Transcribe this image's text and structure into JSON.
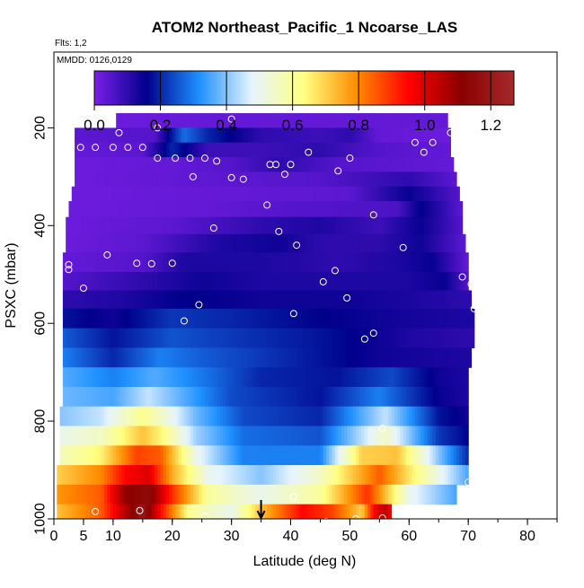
{
  "chart_data": {
    "type": "heatmap",
    "title": "ATOM2 Northeast_Pacific_1 Ncoarse_LAS",
    "annotations": [
      "Flts: 1,2",
      "MMDD: 0126,0129"
    ],
    "xlabel": "Latitude (deg N)",
    "ylabel": "PSXC (mbar)",
    "xlim": [
      0,
      85
    ],
    "ylim": [
      1000,
      45
    ],
    "x_ticks": [
      0,
      5,
      10,
      20,
      30,
      40,
      50,
      60,
      70,
      80
    ],
    "y_ticks": [
      200,
      400,
      600,
      800,
      1000
    ],
    "colorbar": {
      "ticks": [
        0.0,
        0.2,
        0.4,
        0.6,
        0.8,
        1.0,
        1.2
      ],
      "tick_labels": [
        "0.0",
        "0.2",
        "0.4",
        "0.6",
        "0.8",
        "1.0",
        "1.2"
      ],
      "range": [
        0,
        1.27
      ],
      "colors": [
        "#7b1fe8",
        "#00008b",
        "#1e90ff",
        "#e6f4ff",
        "#ffff80",
        "#ff8c00",
        "#ff0000",
        "#8b0000",
        "#a52a2a"
      ]
    },
    "rows": [
      {
        "p": 185,
        "lat_range": [
          10.5,
          66.5
        ],
        "knots": [
          [
            10.5,
            0.02
          ],
          [
            30,
            0.03
          ],
          [
            50,
            0.03
          ],
          [
            66.5,
            0.03
          ]
        ]
      },
      {
        "p": 215,
        "lat_range": [
          3.5,
          67
        ],
        "knots": [
          [
            3.5,
            0.04
          ],
          [
            17,
            0.05
          ],
          [
            22,
            0.28
          ],
          [
            26,
            0.2
          ],
          [
            35,
            0.1
          ],
          [
            45,
            0.08
          ],
          [
            50,
            0.1
          ],
          [
            55,
            0.03
          ],
          [
            67,
            0.02
          ]
        ]
      },
      {
        "p": 245,
        "lat_range": [
          3.5,
          67
        ],
        "knots": [
          [
            3.5,
            0.03
          ],
          [
            15,
            0.04
          ],
          [
            20,
            0.2
          ],
          [
            26,
            0.08
          ],
          [
            35,
            0.08
          ],
          [
            45,
            0.1
          ],
          [
            55,
            0.05
          ],
          [
            67,
            0.03
          ]
        ]
      },
      {
        "p": 275,
        "lat_range": [
          3.5,
          67.5
        ],
        "knots": [
          [
            3.5,
            0.02
          ],
          [
            20,
            0.03
          ],
          [
            30,
            0.05
          ],
          [
            38,
            0.1
          ],
          [
            48,
            0.05
          ],
          [
            67.5,
            0.03
          ]
        ]
      },
      {
        "p": 305,
        "lat_range": [
          3.5,
          68
        ],
        "knots": [
          [
            3.5,
            0.02
          ],
          [
            30,
            0.04
          ],
          [
            45,
            0.05
          ],
          [
            60,
            0.1
          ],
          [
            68,
            0.04
          ]
        ]
      },
      {
        "p": 335,
        "lat_range": [
          3,
          68.5
        ],
        "knots": [
          [
            3,
            0.02
          ],
          [
            30,
            0.03
          ],
          [
            50,
            0.04
          ],
          [
            60,
            0.15
          ],
          [
            68.5,
            0.05
          ]
        ]
      },
      {
        "p": 365,
        "lat_range": [
          2.5,
          69
        ],
        "knots": [
          [
            2.5,
            0.02
          ],
          [
            25,
            0.03
          ],
          [
            40,
            0.05
          ],
          [
            58,
            0.06
          ],
          [
            62,
            0.16
          ],
          [
            69,
            0.04
          ]
        ]
      },
      {
        "p": 400,
        "lat_range": [
          2,
          69
        ],
        "knots": [
          [
            2,
            0.02
          ],
          [
            20,
            0.04
          ],
          [
            35,
            0.1
          ],
          [
            45,
            0.12
          ],
          [
            55,
            0.08
          ],
          [
            62,
            0.15
          ],
          [
            69,
            0.05
          ]
        ]
      },
      {
        "p": 435,
        "lat_range": [
          2,
          69.5
        ],
        "knots": [
          [
            2,
            0.02
          ],
          [
            15,
            0.04
          ],
          [
            28,
            0.12
          ],
          [
            38,
            0.14
          ],
          [
            45,
            0.1
          ],
          [
            55,
            0.1
          ],
          [
            62,
            0.14
          ],
          [
            69.5,
            0.04
          ]
        ]
      },
      {
        "p": 475,
        "lat_range": [
          1.5,
          70
        ],
        "knots": [
          [
            1.5,
            0.03
          ],
          [
            15,
            0.05
          ],
          [
            22,
            0.12
          ],
          [
            35,
            0.12
          ],
          [
            48,
            0.1
          ],
          [
            58,
            0.12
          ],
          [
            64,
            0.15
          ],
          [
            70,
            0.03
          ]
        ]
      },
      {
        "p": 515,
        "lat_range": [
          1.5,
          70
        ],
        "knots": [
          [
            1.5,
            0.05
          ],
          [
            15,
            0.1
          ],
          [
            25,
            0.14
          ],
          [
            35,
            0.12
          ],
          [
            50,
            0.12
          ],
          [
            60,
            0.12
          ],
          [
            66,
            0.15
          ],
          [
            70,
            0.05
          ]
        ]
      },
      {
        "p": 550,
        "lat_range": [
          1.5,
          70.5
        ],
        "knots": [
          [
            1.5,
            0.1
          ],
          [
            12,
            0.12
          ],
          [
            22,
            0.16
          ],
          [
            35,
            0.14
          ],
          [
            50,
            0.14
          ],
          [
            62,
            0.12
          ],
          [
            70.5,
            0.1
          ]
        ]
      },
      {
        "p": 590,
        "lat_range": [
          1.5,
          71
        ],
        "knots": [
          [
            1.5,
            0.18
          ],
          [
            10,
            0.14
          ],
          [
            20,
            0.22
          ],
          [
            30,
            0.2
          ],
          [
            45,
            0.16
          ],
          [
            55,
            0.14
          ],
          [
            71,
            0.12
          ]
        ]
      },
      {
        "p": 630,
        "lat_range": [
          1.5,
          71
        ],
        "knots": [
          [
            1.5,
            0.26
          ],
          [
            10,
            0.18
          ],
          [
            20,
            0.25
          ],
          [
            30,
            0.22
          ],
          [
            45,
            0.18
          ],
          [
            60,
            0.12
          ],
          [
            71,
            0.1
          ]
        ]
      },
      {
        "p": 670,
        "lat_range": [
          1.5,
          70.5
        ],
        "knots": [
          [
            1.5,
            0.3
          ],
          [
            10,
            0.2
          ],
          [
            18,
            0.3
          ],
          [
            25,
            0.26
          ],
          [
            40,
            0.2
          ],
          [
            55,
            0.14
          ],
          [
            70.5,
            0.12
          ]
        ]
      },
      {
        "p": 710,
        "lat_range": [
          1.5,
          70
        ],
        "knots": [
          [
            1.5,
            0.36
          ],
          [
            10,
            0.3
          ],
          [
            17,
            0.36
          ],
          [
            24,
            0.3
          ],
          [
            35,
            0.2
          ],
          [
            48,
            0.18
          ],
          [
            57,
            0.24
          ],
          [
            65,
            0.14
          ],
          [
            70,
            0.12
          ]
        ]
      },
      {
        "p": 750,
        "lat_range": [
          1.5,
          70
        ],
        "knots": [
          [
            1.5,
            0.38
          ],
          [
            10,
            0.35
          ],
          [
            16,
            0.45
          ],
          [
            22,
            0.36
          ],
          [
            30,
            0.24
          ],
          [
            45,
            0.18
          ],
          [
            55,
            0.3
          ],
          [
            65,
            0.15
          ],
          [
            70,
            0.12
          ]
        ]
      },
      {
        "p": 790,
        "lat_range": [
          1,
          70
        ],
        "knots": [
          [
            1,
            0.4
          ],
          [
            8,
            0.45
          ],
          [
            15,
            0.62
          ],
          [
            18,
            0.55
          ],
          [
            24,
            0.38
          ],
          [
            32,
            0.24
          ],
          [
            45,
            0.2
          ],
          [
            56,
            0.45
          ],
          [
            65,
            0.18
          ],
          [
            70,
            0.14
          ]
        ]
      },
      {
        "p": 830,
        "lat_range": [
          1,
          70
        ],
        "knots": [
          [
            1,
            0.5
          ],
          [
            8,
            0.55
          ],
          [
            15,
            0.72
          ],
          [
            18,
            0.65
          ],
          [
            24,
            0.42
          ],
          [
            32,
            0.28
          ],
          [
            45,
            0.25
          ],
          [
            56,
            0.55
          ],
          [
            65,
            0.22
          ],
          [
            70,
            0.16
          ]
        ]
      },
      {
        "p": 870,
        "lat_range": [
          1,
          70
        ],
        "knots": [
          [
            1,
            0.56
          ],
          [
            8,
            0.65
          ],
          [
            14,
            0.88
          ],
          [
            18,
            0.85
          ],
          [
            24,
            0.5
          ],
          [
            32,
            0.3
          ],
          [
            45,
            0.3
          ],
          [
            52,
            0.7
          ],
          [
            58,
            0.72
          ],
          [
            65,
            0.4
          ],
          [
            70,
            0.2
          ]
        ]
      },
      {
        "p": 910,
        "lat_range": [
          0.5,
          70
        ],
        "knots": [
          [
            0.5,
            0.7
          ],
          [
            8,
            0.8
          ],
          [
            12,
            0.95
          ],
          [
            16,
            1.0
          ],
          [
            20,
            0.75
          ],
          [
            26,
            0.5
          ],
          [
            35,
            0.4
          ],
          [
            45,
            0.55
          ],
          [
            55,
            0.85
          ],
          [
            62,
            0.6
          ],
          [
            70,
            0.35
          ]
        ]
      },
      {
        "p": 950,
        "lat_range": [
          0.5,
          68
        ],
        "knots": [
          [
            0.5,
            0.78
          ],
          [
            8,
            0.85
          ],
          [
            12,
            1.1
          ],
          [
            16,
            1.15
          ],
          [
            20,
            0.9
          ],
          [
            26,
            0.6
          ],
          [
            35,
            0.5
          ],
          [
            45,
            0.6
          ],
          [
            53,
            0.9
          ],
          [
            60,
            0.5
          ],
          [
            68,
            0.35
          ]
        ]
      },
      {
        "p": 990,
        "lat_range": [
          0.5,
          57
        ],
        "knots": [
          [
            0.5,
            0.72
          ],
          [
            8,
            0.85
          ],
          [
            12,
            1.05
          ],
          [
            15,
            1.2
          ],
          [
            18,
            0.95
          ],
          [
            23,
            0.6
          ],
          [
            30,
            0.5
          ],
          [
            35,
            0.72
          ],
          [
            42,
            0.95
          ],
          [
            47,
            0.88
          ],
          [
            52,
            0.7
          ],
          [
            54,
            0.95
          ],
          [
            56,
            1.05
          ],
          [
            57,
            0.95
          ]
        ]
      }
    ],
    "points": [
      [
        11,
        210
      ],
      [
        17.5,
        200
      ],
      [
        30,
        182
      ],
      [
        61,
        230
      ],
      [
        64,
        230
      ],
      [
        67,
        210
      ],
      [
        50,
        262
      ],
      [
        4.5,
        240
      ],
      [
        7,
        240
      ],
      [
        10,
        240
      ],
      [
        12.5,
        240
      ],
      [
        15,
        240
      ],
      [
        17.5,
        262
      ],
      [
        20.5,
        262
      ],
      [
        23,
        262
      ],
      [
        25.5,
        262
      ],
      [
        27.5,
        268
      ],
      [
        36.5,
        275
      ],
      [
        37.5,
        275
      ],
      [
        39,
        295
      ],
      [
        40,
        275
      ],
      [
        43,
        250
      ],
      [
        48,
        288
      ],
      [
        62.5,
        250
      ],
      [
        23.5,
        300
      ],
      [
        30,
        302
      ],
      [
        32,
        305
      ],
      [
        36,
        358
      ],
      [
        38,
        412
      ],
      [
        41,
        440
      ],
      [
        54,
        378
      ],
      [
        59,
        445
      ],
      [
        27,
        405
      ],
      [
        2.5,
        480
      ],
      [
        2.5,
        490
      ],
      [
        9,
        460
      ],
      [
        14,
        477
      ],
      [
        16.5,
        478
      ],
      [
        20,
        477
      ],
      [
        47.5,
        492
      ],
      [
        5,
        528
      ],
      [
        45.5,
        515
      ],
      [
        49.5,
        548
      ],
      [
        69,
        505
      ],
      [
        70.5,
        520
      ],
      [
        71,
        570
      ],
      [
        24.5,
        562
      ],
      [
        22,
        595
      ],
      [
        40.5,
        580
      ],
      [
        52.5,
        632
      ],
      [
        54,
        620
      ],
      [
        55.5,
        815
      ],
      [
        70,
        925
      ],
      [
        40.5,
        955
      ],
      [
        7,
        985
      ],
      [
        14.5,
        983
      ],
      [
        25.5,
        995
      ],
      [
        51,
        1000
      ],
      [
        55.5,
        998
      ],
      [
        46,
        1005
      ]
    ],
    "marker": {
      "lat": 35
    }
  }
}
